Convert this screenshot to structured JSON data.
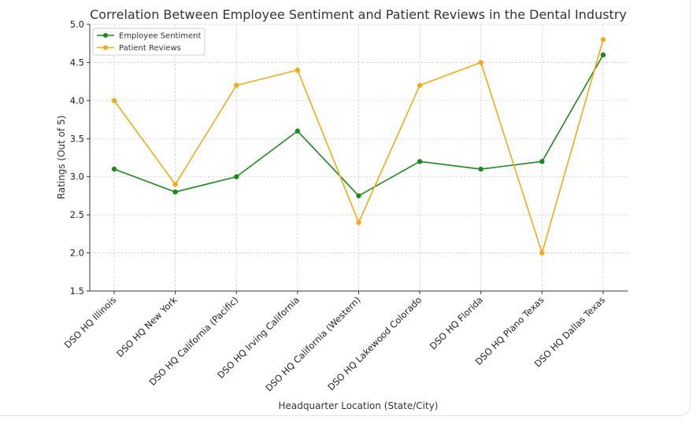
{
  "chart_data": {
    "type": "line",
    "title": "Correlation Between Employee Sentiment and Patient Reviews in the Dental Industry",
    "xlabel": "Headquarter Location (State/City)",
    "ylabel": "Ratings (Out of 5)",
    "categories": [
      "DSO HQ Illinois",
      "DSO HQ New York",
      "DSO HQ California (Pacific)",
      "DSO HQ Irving California",
      "DSO HQ California (Western)",
      "DSO HQ Lakewood Colorado",
      "DSO HQ Florida",
      "DSO HQ Plano Texas",
      "DSO HQ Dallas Texas"
    ],
    "ylim": [
      1.5,
      5.0
    ],
    "yticks": [
      "1.5",
      "2.0",
      "2.5",
      "3.0",
      "3.5",
      "4.0",
      "4.5",
      "5.0"
    ],
    "grid": true,
    "legend_position": "top-left",
    "series": [
      {
        "name": "Employee Sentiment",
        "color": "#1a8a1a",
        "values": [
          3.1,
          2.8,
          3.0,
          3.6,
          2.75,
          3.2,
          3.1,
          3.2,
          4.6
        ]
      },
      {
        "name": "Patient Reviews",
        "color": "#f5a914",
        "values": [
          4.0,
          2.9,
          4.2,
          4.4,
          2.4,
          4.2,
          4.5,
          2.0,
          4.8
        ]
      }
    ]
  }
}
